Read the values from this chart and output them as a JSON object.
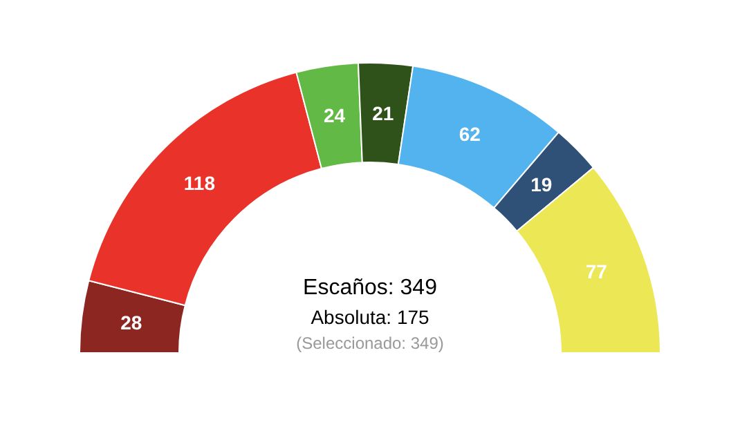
{
  "chart_data": {
    "type": "donut",
    "categories": [
      null,
      null,
      null,
      null,
      null,
      null,
      null
    ],
    "values": [
      28,
      118,
      24,
      21,
      62,
      19,
      77
    ],
    "colors": [
      "#8c2620",
      "#e8322a",
      "#62b946",
      "#2e5219",
      "#52b3ef",
      "#2f5077",
      "#ece755"
    ],
    "data_labels": true,
    "annotations": [
      "Escaños: 349",
      "Absoluta: 175",
      "(Seleccionado: 349)"
    ]
  }
}
